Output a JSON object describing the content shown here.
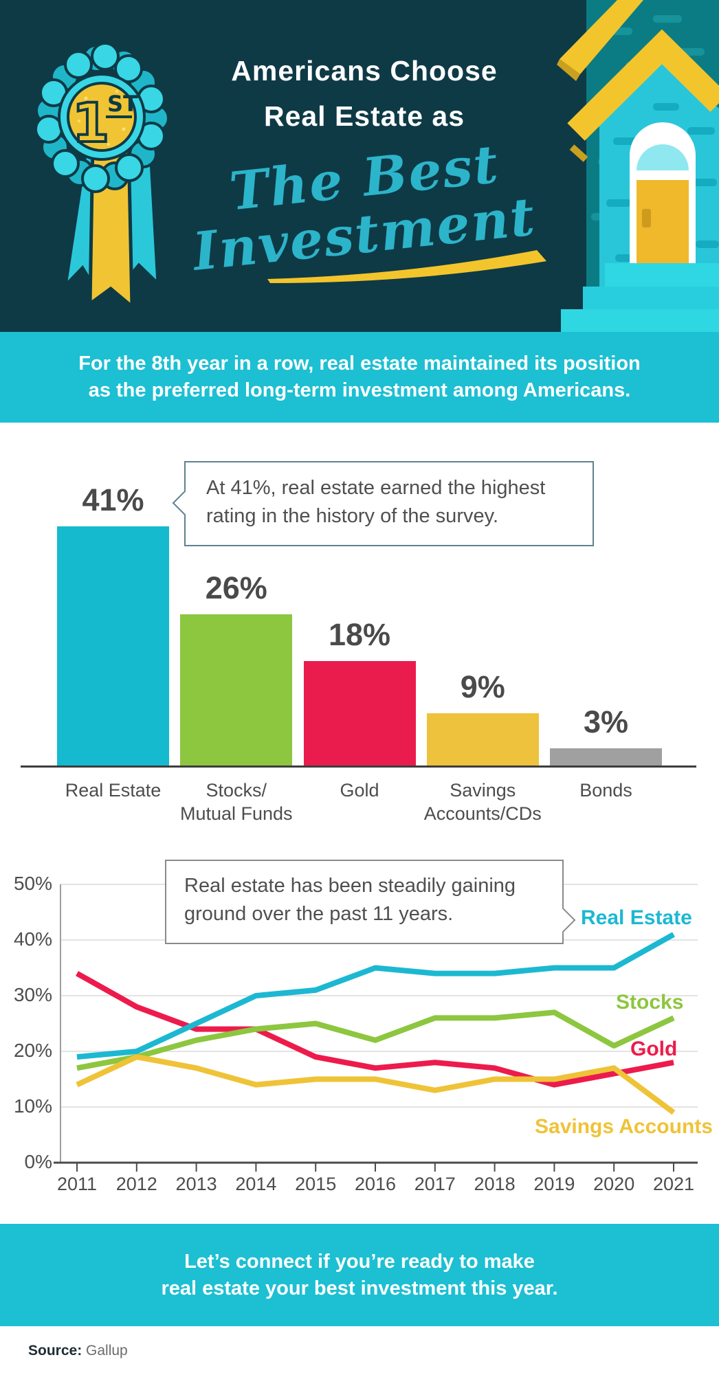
{
  "header": {
    "badge": {
      "rank_number": "1",
      "rank_suffix": "ST"
    },
    "title_line1": "Americans Choose",
    "title_line2": "Real Estate as",
    "script_line1": "The Best",
    "script_line2": "Investment"
  },
  "intro_banner": {
    "line1": "For the 8th year in a row, real estate maintained its position",
    "line2": "as the preferred long-term investment among Americans."
  },
  "bar_callout": {
    "text": "At 41%, real estate earned the highest rating in the history of the survey."
  },
  "line_callout": {
    "text": "Real estate has been steadily gaining ground over the past 11 years."
  },
  "cta_banner": {
    "line1": "Let’s connect if you’re ready to make",
    "line2": "real estate your best investment this year."
  },
  "footer": {
    "source_label": "Source:",
    "source_value": "Gallup"
  },
  "colors": {
    "header_bg": "#0e3a46",
    "banner_teal": "#1dbfd2",
    "accent_cyan": "#2cb4ca",
    "gold": "#f3c52c",
    "text_dark": "#4a4a4a"
  },
  "chart_data": [
    {
      "type": "bar",
      "title": "",
      "categories": [
        "Real Estate",
        "Stocks/Mutual Funds",
        "Gold",
        "Savings Accounts/CDs",
        "Bonds"
      ],
      "category_label_lines": [
        [
          "Real Estate"
        ],
        [
          "Stocks/",
          "Mutual Funds"
        ],
        [
          "Gold"
        ],
        [
          "Savings",
          "Accounts/CDs"
        ],
        [
          "Bonds"
        ]
      ],
      "values": [
        41,
        26,
        18,
        9,
        3
      ],
      "value_labels": [
        "41%",
        "26%",
        "18%",
        "9%",
        "3%"
      ],
      "bar_colors": [
        "#16bacf",
        "#8dc63f",
        "#ea1c4d",
        "#eec23c",
        "#a0a0a0"
      ],
      "ylim": [
        0,
        45
      ],
      "grid": false
    },
    {
      "type": "line",
      "title": "",
      "x": [
        "2011",
        "2012",
        "2013",
        "2014",
        "2015",
        "2016",
        "2017",
        "2018",
        "2019",
        "2020",
        "2021"
      ],
      "series": [
        {
          "name": "Real Estate",
          "color": "#1cb8d2",
          "values": [
            19,
            20,
            25,
            30,
            31,
            35,
            34,
            34,
            35,
            35,
            41
          ]
        },
        {
          "name": "Stocks",
          "color": "#8dc63f",
          "values": [
            17,
            19,
            22,
            24,
            25,
            22,
            26,
            26,
            27,
            21,
            26
          ]
        },
        {
          "name": "Gold",
          "color": "#ed1b4c",
          "values": [
            34,
            28,
            24,
            24,
            19,
            17,
            18,
            17,
            14,
            16,
            18
          ]
        },
        {
          "name": "Savings Accounts",
          "color": "#efc337",
          "values": [
            14,
            19,
            17,
            14,
            15,
            15,
            13,
            15,
            15,
            17,
            9
          ]
        }
      ],
      "y_ticks": [
        {
          "value": 0,
          "label": "0%"
        },
        {
          "value": 10,
          "label": "10%"
        },
        {
          "value": 20,
          "label": "20%"
        },
        {
          "value": 30,
          "label": "30%"
        },
        {
          "value": 40,
          "label": "40%"
        },
        {
          "value": 50,
          "label": "50%"
        }
      ],
      "ylim": [
        0,
        50
      ],
      "grid": true,
      "legend": "inline-right"
    }
  ]
}
